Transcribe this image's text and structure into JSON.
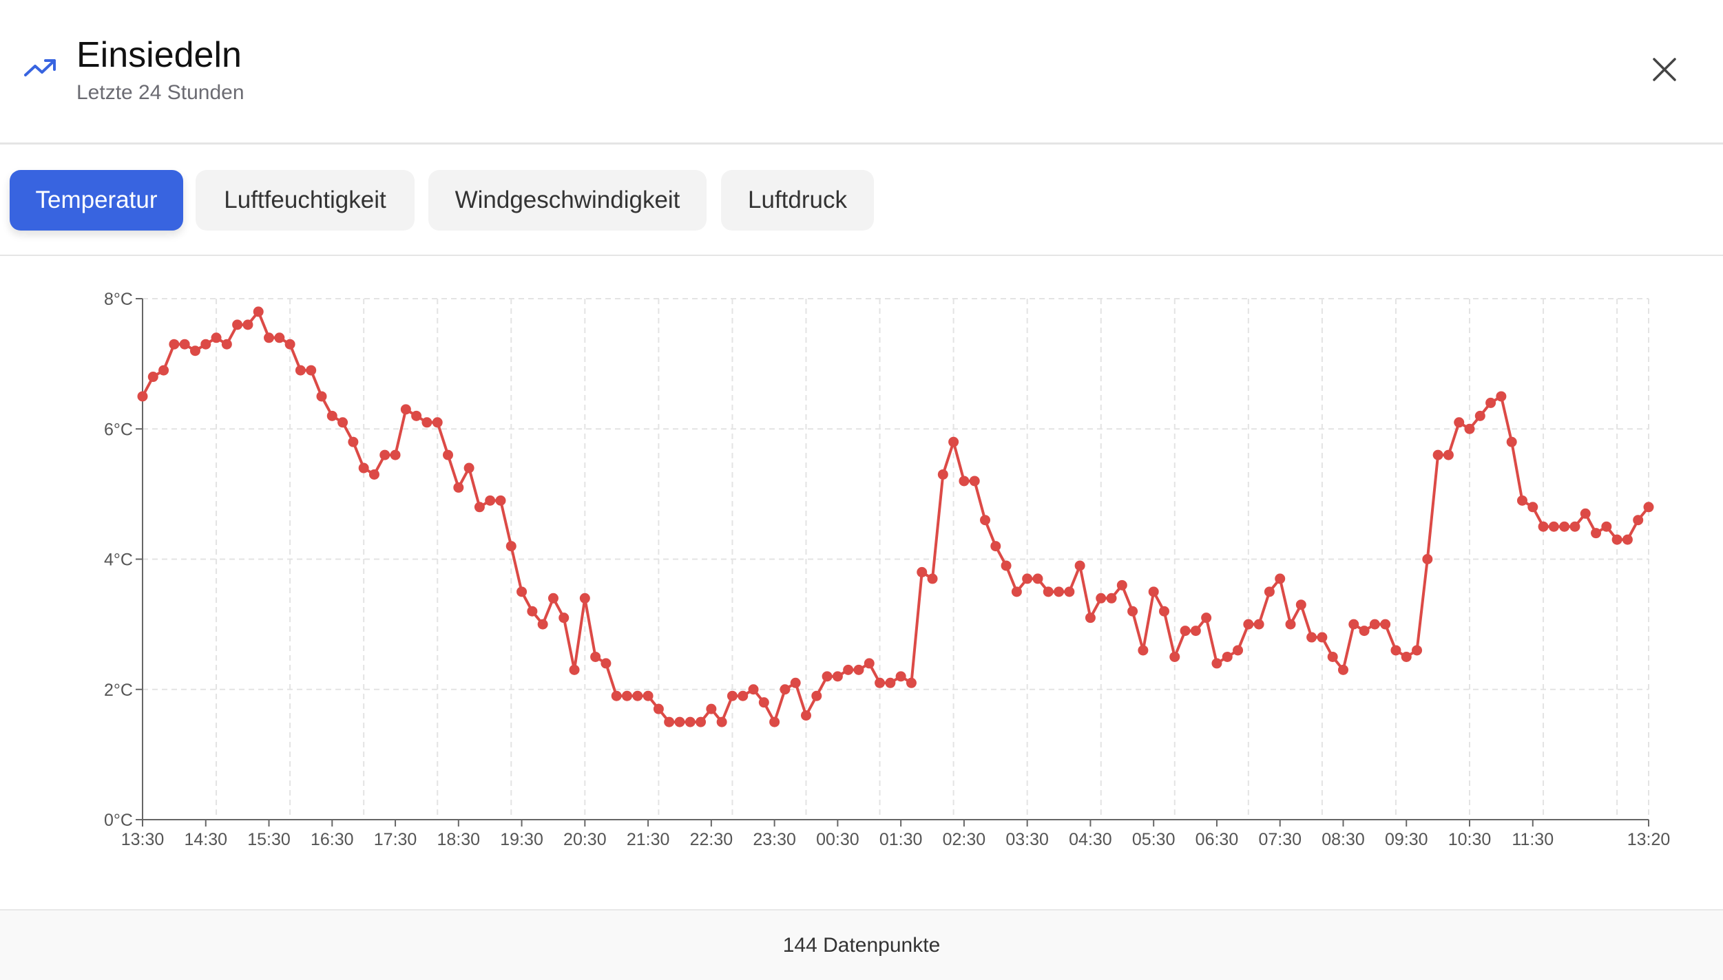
{
  "header": {
    "title": "Einsiedeln",
    "subtitle": "Letzte 24 Stunden",
    "icon": "trending-up-icon",
    "close_icon": "close-icon"
  },
  "tabs": [
    {
      "label": "Temperatur",
      "active": true
    },
    {
      "label": "Luftfeuchtigkeit"
    },
    {
      "label": "Windgeschwindigkeit"
    },
    {
      "label": "Luftdruck"
    }
  ],
  "colors": {
    "accent": "#3864e0",
    "line": "#dc4a46"
  },
  "chart_data": {
    "type": "line",
    "title": "",
    "xlabel": "",
    "ylabel": "",
    "ylim": [
      0,
      8
    ],
    "y_ticks": [
      "0°C",
      "2°C",
      "4°C",
      "6°C",
      "8°C"
    ],
    "y_tick_values": [
      0,
      2,
      4,
      6,
      8
    ],
    "x_ticks": [
      "13:30",
      "14:30",
      "15:30",
      "16:30",
      "17:30",
      "18:30",
      "19:30",
      "20:30",
      "21:30",
      "22:30",
      "23:30",
      "00:30",
      "01:30",
      "02:30",
      "03:30",
      "04:30",
      "05:30",
      "06:30",
      "07:30",
      "08:30",
      "09:30",
      "10:30",
      "11:30",
      "13:20"
    ],
    "x_tick_indices": [
      0,
      6,
      12,
      18,
      24,
      30,
      36,
      42,
      48,
      54,
      60,
      66,
      72,
      78,
      84,
      90,
      96,
      102,
      108,
      114,
      120,
      126,
      132,
      143
    ],
    "grid": true,
    "series": [
      {
        "name": "Temperatur",
        "unit": "°C",
        "values": [
          6.5,
          6.8,
          6.9,
          7.3,
          7.3,
          7.2,
          7.3,
          7.4,
          7.3,
          7.6,
          7.6,
          7.8,
          7.4,
          7.4,
          7.3,
          6.9,
          6.9,
          6.5,
          6.2,
          6.1,
          5.8,
          5.4,
          5.3,
          5.6,
          5.6,
          6.3,
          6.2,
          6.1,
          6.1,
          5.6,
          5.1,
          5.4,
          4.8,
          4.9,
          4.9,
          4.2,
          3.5,
          3.2,
          3.0,
          3.4,
          3.1,
          2.3,
          3.4,
          2.5,
          2.4,
          1.9,
          1.9,
          1.9,
          1.9,
          1.7,
          1.5,
          1.5,
          1.5,
          1.5,
          1.7,
          1.5,
          1.9,
          1.9,
          2.0,
          1.8,
          1.5,
          2.0,
          2.1,
          1.6,
          1.9,
          2.2,
          2.2,
          2.3,
          2.3,
          2.4,
          2.1,
          2.1,
          2.2,
          2.1,
          3.8,
          3.7,
          5.3,
          5.8,
          5.2,
          5.2,
          4.6,
          4.2,
          3.9,
          3.5,
          3.7,
          3.7,
          3.5,
          3.5,
          3.5,
          3.9,
          3.1,
          3.4,
          3.4,
          3.6,
          3.2,
          2.6,
          3.5,
          3.2,
          2.5,
          2.9,
          2.9,
          3.1,
          2.4,
          2.5,
          2.6,
          3.0,
          3.0,
          3.5,
          3.7,
          3.0,
          3.3,
          2.8,
          2.8,
          2.5,
          2.3,
          3.0,
          2.9,
          3.0,
          3.0,
          2.6,
          2.5,
          2.6,
          4.0,
          5.6,
          5.6,
          6.1,
          6.0,
          6.2,
          6.4,
          6.5,
          5.8,
          4.9,
          4.8,
          4.5,
          4.5,
          4.5,
          4.5,
          4.7,
          4.4,
          4.5,
          4.3,
          4.3,
          4.6,
          4.8
        ]
      }
    ]
  },
  "footer": {
    "count": "144 Datenpunkte"
  }
}
